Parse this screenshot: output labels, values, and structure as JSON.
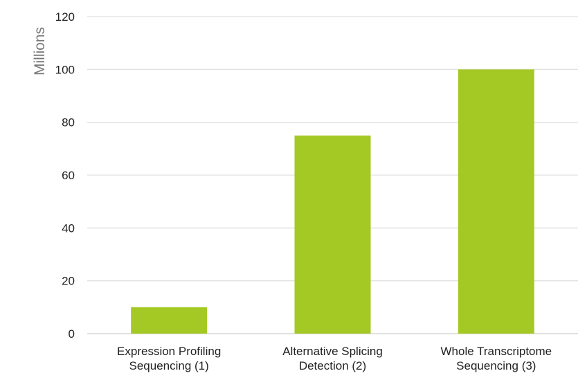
{
  "chart_data": {
    "type": "bar",
    "categories": [
      [
        "Expression Profiling",
        "Sequencing (1)"
      ],
      [
        "Alternative Splicing",
        "Detection (2)"
      ],
      [
        "Whole Transcriptome",
        "Sequencing (3)"
      ]
    ],
    "values": [
      10,
      75,
      100
    ],
    "title": "",
    "xlabel": "",
    "ylabel": "Millions",
    "ylim": [
      0,
      120
    ],
    "yticks": [
      0,
      20,
      40,
      60,
      80,
      100,
      120
    ],
    "grid": true,
    "legend": "none",
    "colors": {
      "bar": "#a5c924",
      "grid": "#e0e0e0",
      "text": "#222222",
      "axis_label": "#777777"
    }
  }
}
